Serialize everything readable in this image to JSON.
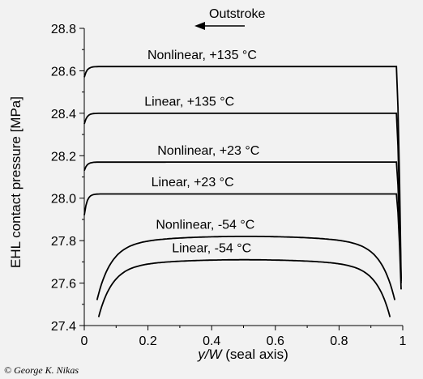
{
  "chart_data": {
    "type": "line",
    "xlabel_italic": "y/W",
    "xlabel_rest": " (seal axis)",
    "ylabel": "EHL contact pressure [MPa]",
    "xlim": [
      0,
      1
    ],
    "ylim": [
      27.4,
      28.8
    ],
    "xticks": [
      "0",
      "0.2",
      "0.4",
      "0.6",
      "0.8",
      "1"
    ],
    "yticks": [
      "27.4",
      "27.6",
      "27.8",
      "28.0",
      "28.2",
      "28.4",
      "28.6",
      "28.8"
    ],
    "annotation": "Outstroke",
    "series": [
      {
        "name": "Nonlinear, +135 °C",
        "x_start": 0.0,
        "x_end": 0.995,
        "start": 28.57,
        "plateau": 28.62,
        "end": 27.62,
        "label_x": 0.37,
        "label_y": 28.64
      },
      {
        "name": "Linear, +135 °C",
        "x_start": 0.0,
        "x_end": 0.995,
        "start": 28.35,
        "plateau": 28.4,
        "end": 27.6,
        "label_x": 0.33,
        "label_y": 28.42
      },
      {
        "name": "Nonlinear, +23 °C",
        "x_start": 0.0,
        "x_end": 0.995,
        "start": 28.13,
        "plateau": 28.17,
        "end": 27.61,
        "label_x": 0.39,
        "label_y": 28.19
      },
      {
        "name": "Linear, +23 °C",
        "x_start": 0.0,
        "x_end": 0.995,
        "start": 27.92,
        "plateau": 28.02,
        "end": 27.57,
        "label_x": 0.34,
        "label_y": 28.04
      },
      {
        "name": "Nonlinear, -54 °C",
        "x_start": 0.04,
        "x_end": 0.975,
        "start": 27.52,
        "plateau": 27.82,
        "end": 27.52,
        "label_x": 0.38,
        "label_y": 27.84
      },
      {
        "name": "Linear, -54 °C",
        "x_start": 0.045,
        "x_end": 0.96,
        "start": 27.44,
        "plateau": 27.71,
        "end": 27.45,
        "label_x": 0.4,
        "label_y": 27.73
      }
    ]
  },
  "copyright": "© George K. Nikas"
}
